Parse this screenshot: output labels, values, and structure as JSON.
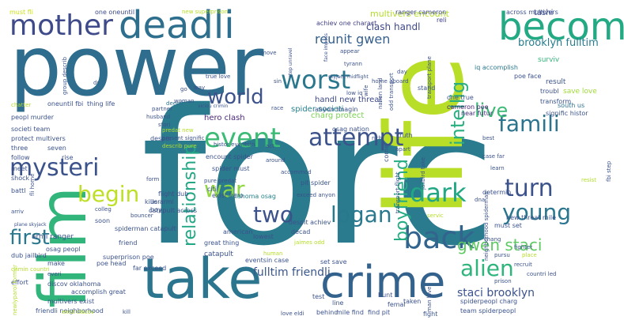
{
  "words": [
    {
      "text": "forc",
      "color": "#2a7b8e"
    },
    {
      "text": "life",
      "color": "#b9de28"
    },
    {
      "text": "power",
      "color": "#2f6d8e"
    },
    {
      "text": "film",
      "color": "#31b57b"
    },
    {
      "text": "take",
      "color": "#2b758e"
    },
    {
      "text": "crime",
      "color": "#33628d"
    },
    {
      "text": "deadli",
      "color": "#2e6f8e"
    },
    {
      "text": "mother",
      "color": "#3e4a89"
    },
    {
      "text": "becom",
      "color": "#23a983"
    },
    {
      "text": "worst",
      "color": "#2a778e"
    },
    {
      "text": "world",
      "color": "#3b528b"
    },
    {
      "text": "event",
      "color": "#3bbb75"
    },
    {
      "text": "attempt",
      "color": "#3b528b"
    },
    {
      "text": "famili",
      "color": "#2c738e"
    },
    {
      "text": "live",
      "color": "#3bbb75"
    },
    {
      "text": "intellig",
      "color": "#29af7f"
    },
    {
      "text": "mysteri",
      "color": "#3b528b"
    },
    {
      "text": "begin",
      "color": "#bddf26"
    },
    {
      "text": "war",
      "color": "#90d743"
    },
    {
      "text": "relationship",
      "color": "#22a785"
    },
    {
      "text": "dark",
      "color": "#22a785"
    },
    {
      "text": "turn",
      "color": "#3b528b"
    },
    {
      "text": "young",
      "color": "#2a768e"
    },
    {
      "text": "two",
      "color": "#3b528b"
    },
    {
      "text": "logan",
      "color": "#2a788e"
    },
    {
      "text": "back",
      "color": "#32648e"
    },
    {
      "text": "boyfriend",
      "color": "#25ac82"
    },
    {
      "text": "alien",
      "color": "#2fb47c"
    },
    {
      "text": "first",
      "color": "#2a788e"
    },
    {
      "text": "gwen staci",
      "color": "#5ec962"
    },
    {
      "text": "staci brooklyn",
      "color": "#3b528b"
    },
    {
      "text": "reunit gwen",
      "color": "#355f8d"
    },
    {
      "text": "fulltim friendli",
      "color": "#39568c"
    },
    {
      "text": "brooklyn fulltim",
      "color": "#287c8e"
    },
    {
      "text": "clash handl",
      "color": "#3e4989"
    },
    {
      "text": "multivers encount",
      "color": "#b5de2b"
    },
    {
      "text": "achiev one charact",
      "color": "#424086"
    },
    {
      "text": "ranger cameron",
      "color": "#404688"
    },
    {
      "text": "across multivers",
      "color": "#3b528b"
    },
    {
      "text": "tashi",
      "color": "#3e4c8a"
    },
    {
      "text": "surviv",
      "color": "#35b779"
    },
    {
      "text": "reli",
      "color": "#414287"
    },
    {
      "text": "must fli",
      "color": "#cde11d"
    },
    {
      "text": "one oneuntil",
      "color": "#3e4a89"
    },
    {
      "text": "new superprison",
      "color": "#b8de29"
    },
    {
      "text": "charg protect",
      "color": "#7ad151"
    },
    {
      "text": "hero clash",
      "color": "#482878"
    },
    {
      "text": "handl new threat",
      "color": "#3e4989"
    },
    {
      "text": "spider societi",
      "color": "#26828e"
    },
    {
      "text": "anyon imagin",
      "color": "#3b528b"
    },
    {
      "text": "iq accomplish",
      "color": "#2a788e"
    },
    {
      "text": "poe face",
      "color": "#3b528b"
    },
    {
      "text": "result",
      "color": "#3b528b"
    },
    {
      "text": "save love",
      "color": "#a0da39"
    },
    {
      "text": "troubl",
      "color": "#3b528b"
    },
    {
      "text": "south us",
      "color": "#2d708e"
    },
    {
      "text": "transform",
      "color": "#3b528b"
    },
    {
      "text": "signific histor",
      "color": "#3b528b"
    },
    {
      "text": "near futur",
      "color": "#472d7b"
    },
    {
      "text": "one true",
      "color": "#3b528b"
    },
    {
      "text": "cameron poe",
      "color": "#482173"
    },
    {
      "text": "home aboard",
      "color": "#3b528b"
    },
    {
      "text": "sin",
      "color": "#3b528b"
    },
    {
      "text": "move",
      "color": "#3b528b"
    },
    {
      "text": "race",
      "color": "#3b528b"
    },
    {
      "text": "true love",
      "color": "#3b528b"
    },
    {
      "text": "way",
      "color": "#3b528b"
    },
    {
      "text": "deepli",
      "color": "#2c728e"
    },
    {
      "text": "go",
      "color": "#3b528b"
    },
    {
      "text": "woman",
      "color": "#3b528b"
    },
    {
      "text": "partner",
      "color": "#3b528b"
    },
    {
      "text": "husband",
      "color": "#3b528b"
    },
    {
      "text": "stori",
      "color": "#3b528b"
    },
    {
      "text": "thing life",
      "color": "#3b528b"
    },
    {
      "text": "oneuntil fbi",
      "color": "#3b528b"
    },
    {
      "text": "peopl murder",
      "color": "#3b528b"
    },
    {
      "text": "societi team",
      "color": "#3b528b"
    },
    {
      "text": "protect multivers",
      "color": "#3b528b"
    },
    {
      "text": "three",
      "color": "#3b528b"
    },
    {
      "text": "seven",
      "color": "#3b528b"
    },
    {
      "text": "follow",
      "color": "#3b528b"
    },
    {
      "text": "rise",
      "color": "#3b528b"
    },
    {
      "text": "meet",
      "color": "#3b528b"
    },
    {
      "text": "fli home",
      "color": "#3b528b"
    },
    {
      "text": "shock",
      "color": "#3b528b"
    },
    {
      "text": "battl",
      "color": "#3b528b"
    },
    {
      "text": "flight dub",
      "color": "#3b528b"
    },
    {
      "text": "killer",
      "color": "#3b528b"
    },
    {
      "text": "desper",
      "color": "#3b528b"
    },
    {
      "text": "form",
      "color": "#3b528b"
    },
    {
      "text": "spider must",
      "color": "#3b528b"
    },
    {
      "text": "histor eventsin",
      "color": "#3b528b"
    },
    {
      "text": "encount spider",
      "color": "#3b528b"
    },
    {
      "text": "exist hero",
      "color": "#3b528b"
    },
    {
      "text": "present signific",
      "color": "#3b528b"
    },
    {
      "text": "predat new",
      "color": "#b5de2b"
    },
    {
      "text": "describ pure",
      "color": "#b5de2b"
    },
    {
      "text": "pit spider",
      "color": "#3b528b"
    },
    {
      "text": "exceed anyon",
      "color": "#3b528b"
    },
    {
      "text": "accommod",
      "color": "#3b528b"
    },
    {
      "text": "around",
      "color": "#3b528b"
    },
    {
      "text": "oklahoma osag",
      "color": "#26828e"
    },
    {
      "text": "citi",
      "color": "#3b528b"
    },
    {
      "text": "pure predat",
      "color": "#3b528b"
    },
    {
      "text": "catapult across",
      "color": "#3b528b"
    },
    {
      "text": "catapult",
      "color": "#3b528b"
    },
    {
      "text": "spiderman catapult",
      "color": "#3b528b"
    },
    {
      "text": "armi ranger",
      "color": "#3b528b"
    },
    {
      "text": "osag peopl",
      "color": "#3b528b"
    },
    {
      "text": "dub jailbird",
      "color": "#3b528b"
    },
    {
      "text": "crimin countri",
      "color": "#b5de2b"
    },
    {
      "text": "arriv",
      "color": "#3b528b"
    },
    {
      "text": "effort",
      "color": "#3b528b"
    },
    {
      "text": "make",
      "color": "#3b528b"
    },
    {
      "text": "poe head",
      "color": "#3b528b"
    },
    {
      "text": "us armi",
      "color": "#3b528b"
    },
    {
      "text": "boy",
      "color": "#3b528b"
    },
    {
      "text": "colleg",
      "color": "#3b528b"
    },
    {
      "text": "soon",
      "color": "#3b528b"
    },
    {
      "text": "bouncer",
      "color": "#3b528b"
    },
    {
      "text": "friend",
      "color": "#3b528b"
    },
    {
      "text": "far exceed",
      "color": "#3b528b"
    },
    {
      "text": "superprison poe",
      "color": "#3b528b"
    },
    {
      "text": "everi",
      "color": "#3b528b"
    },
    {
      "text": "discov oklahoma",
      "color": "#3b528b"
    },
    {
      "text": "accomplish great",
      "color": "#3b528b"
    },
    {
      "text": "multivers exist",
      "color": "#3b528b"
    },
    {
      "text": "friendli neighborhood",
      "color": "#3b528b"
    },
    {
      "text": "newlyparol former",
      "color": "#b5de2b"
    },
    {
      "text": "exist discov",
      "color": "#b5de2b"
    },
    {
      "text": "kill",
      "color": "#3b528b"
    },
    {
      "text": "great thing",
      "color": "#3b528b"
    },
    {
      "text": "american",
      "color": "#3b528b"
    },
    {
      "text": "lowest",
      "color": "#3b528b"
    },
    {
      "text": "eventsin case",
      "color": "#3b528b"
    },
    {
      "text": "human",
      "color": "#b5de2b"
    },
    {
      "text": "decad",
      "color": "#3b528b"
    },
    {
      "text": "despit achiev",
      "color": "#3b528b"
    },
    {
      "text": "jaimes odd",
      "color": "#b5de2b"
    },
    {
      "text": "set save",
      "color": "#3b528b"
    },
    {
      "text": "test",
      "color": "#3b528b"
    },
    {
      "text": "line",
      "color": "#3b528b"
    },
    {
      "text": "behind",
      "color": "#3b528b"
    },
    {
      "text": "mile find",
      "color": "#3b528b"
    },
    {
      "text": "find pit",
      "color": "#3b528b"
    },
    {
      "text": "love eldi",
      "color": "#3b528b"
    },
    {
      "text": "hunt",
      "color": "#3b528b"
    },
    {
      "text": "femal",
      "color": "#3b528b"
    },
    {
      "text": "taken",
      "color": "#3b528b"
    },
    {
      "text": "man love",
      "color": "#3b528b"
    },
    {
      "text": "fight",
      "color": "#3b528b"
    },
    {
      "text": "spiderpeopl charg",
      "color": "#3b528b"
    },
    {
      "text": "team spiderpeopl",
      "color": "#3b528b"
    },
    {
      "text": "neighborhood spiderman",
      "color": "#3b528b"
    },
    {
      "text": "new threat mile",
      "color": "#3b528b"
    },
    {
      "text": "must set",
      "color": "#3b528b"
    },
    {
      "text": "determin",
      "color": "#3b528b"
    },
    {
      "text": "chang",
      "color": "#3b528b"
    },
    {
      "text": "fighter",
      "color": "#3b528b"
    },
    {
      "text": "place",
      "color": "#b5de2b"
    },
    {
      "text": "recruit",
      "color": "#3b528b"
    },
    {
      "text": "countri led",
      "color": "#3b528b"
    },
    {
      "text": "prison",
      "color": "#3b528b"
    },
    {
      "text": "pursu",
      "color": "#3b528b"
    },
    {
      "text": "learn",
      "color": "#3b528b"
    },
    {
      "text": "case far",
      "color": "#3b528b"
    },
    {
      "text": "resist",
      "color": "#b5de2b"
    },
    {
      "text": "fbi step",
      "color": "#3b528b"
    },
    {
      "text": "best",
      "color": "#3b528b"
    },
    {
      "text": "truth",
      "color": "#3b528b"
    },
    {
      "text": "apart",
      "color": "#3b528b"
    },
    {
      "text": "come",
      "color": "#3b528b"
    },
    {
      "text": "jailbird take",
      "color": "#3b528b"
    },
    {
      "text": "osag nation",
      "color": "#3b528b"
    },
    {
      "text": "dna",
      "color": "#3b528b"
    },
    {
      "text": "servic",
      "color": "#b5de2b"
    },
    {
      "text": "act",
      "color": "#3b528b"
    },
    {
      "text": "tyrann",
      "color": "#3b528b"
    },
    {
      "text": "appear",
      "color": "#3b528b"
    },
    {
      "text": "low iq",
      "color": "#3b528b"
    },
    {
      "text": "stand",
      "color": "#3b528b"
    },
    {
      "text": "wife",
      "color": "#3b528b"
    },
    {
      "text": "nation land",
      "color": "#3b528b"
    },
    {
      "text": "transport flight",
      "color": "#3b528b"
    },
    {
      "text": "day",
      "color": "#3b528b"
    },
    {
      "text": "odd transport",
      "color": "#3b528b"
    },
    {
      "text": "skyjack midflight",
      "color": "#3b528b"
    },
    {
      "text": "transport plane",
      "color": "#3b528b"
    },
    {
      "text": "plane skyjack",
      "color": "#3b528b"
    },
    {
      "text": "group describ",
      "color": "#3b528b"
    },
    {
      "text": "dr",
      "color": "#3b528b"
    },
    {
      "text": "face imposs",
      "color": "#3b528b"
    },
    {
      "text": "step unravel",
      "color": "#3b528b"
    },
    {
      "text": "viciou crimin",
      "color": "#3b528b"
    },
    {
      "text": "chatter",
      "color": "#b5de2b"
    },
    {
      "text": "rich",
      "color": "#3b528b"
    }
  ]
}
